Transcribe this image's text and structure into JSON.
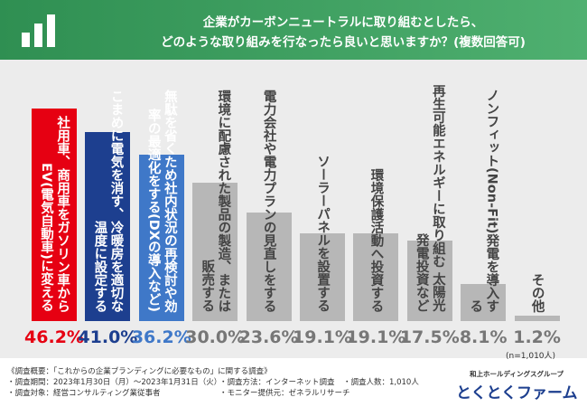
{
  "chart_data": {
    "type": "bar",
    "title_lines": [
      "企業がカーボンニュートラルに取り組むとしたら、",
      "どのような取り組みを行なったら良いと思いますか？(複数回答可)"
    ],
    "categories": [
      "社用車、商用車をガソリン車からEV(電気自動車)に変える",
      "こまめに電気を消す、冷暖房を適切な温度に設定する",
      "無駄を省くため社内状況の再検討や効率の最適化をする(DXの導入など)",
      "環境に配慮された製品の製造、または販売する",
      "電力会社や電力プランの見直しをする",
      "ソーラーパネルを設置する",
      "環境保護活動へ投資する",
      "再生可能エネルギーに取り組む 太陽光発電投資など",
      "ノンフィット(Non-Fit)発電を導入する",
      "その他"
    ],
    "values": [
      46.2,
      41.0,
      36.2,
      30.0,
      23.6,
      19.1,
      19.1,
      17.5,
      8.1,
      1.2
    ],
    "value_labels": [
      "46.2%",
      "41.0%",
      "36.2%",
      "30.0%",
      "23.6%",
      "19.1%",
      "19.1%",
      "17.5%",
      "8.1%",
      "1.2%"
    ],
    "colors": [
      "#e60012",
      "#1d3f8f",
      "#3f78c8",
      "#b7b7b7",
      "#b7b7b7",
      "#b7b7b7",
      "#b7b7b7",
      "#b7b7b7",
      "#b7b7b7",
      "#b7b7b7"
    ],
    "note": "(n=1,010人)"
  },
  "footer": {
    "heading": "《調査概要：「これからの企業ブランディングに必要なもの」に関する調査》",
    "items": [
      "・調査期間：2023年1月30日（月）〜2023年1月31日（火）",
      "・調査方法：インターネット調査",
      "・調査人数：1,010人",
      "・調査対象：経営コンサルティング業従事者",
      "・モニター提供元：ゼネラルリサーチ"
    ]
  },
  "logo": {
    "group": "和上ホールディングスグループ",
    "name": "とくとくファーム"
  }
}
